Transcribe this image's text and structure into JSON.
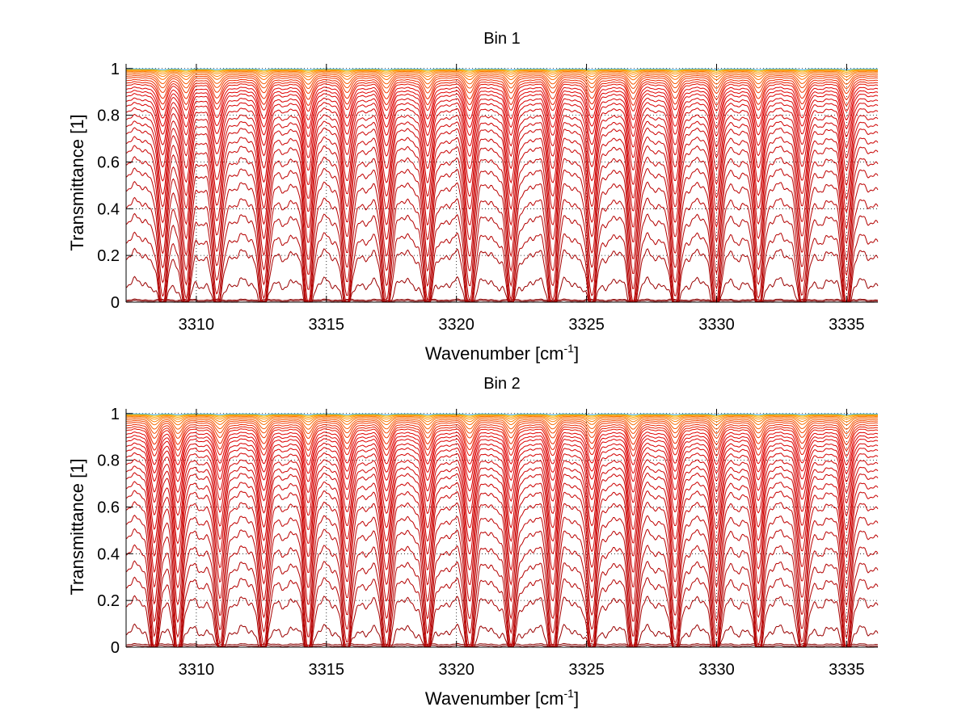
{
  "chart_data": [
    {
      "type": "line",
      "title": "Bin 1",
      "xlabel": "Wavenumber [cm",
      "xlabel_sup": "-1",
      "xlabel_end": "]",
      "ylabel": "Transmittance [1]",
      "xlim": [
        3307.3,
        3336.2
      ],
      "ylim": [
        0,
        1.02
      ],
      "grid": true,
      "xticks": [
        3310,
        3315,
        3320,
        3325,
        3330,
        3335
      ],
      "yticks": [
        0,
        0.2,
        0.4,
        0.6,
        0.8,
        1
      ],
      "xtick_labels": [
        "3310",
        "3315",
        "3320",
        "3325",
        "3330",
        "3335"
      ],
      "ytick_labels": [
        "0",
        "0.2",
        "0.4",
        "0.6",
        "0.8",
        "1"
      ],
      "absorption_lines": [
        3308.7,
        3309.6,
        3310.8,
        3312.6,
        3314.3,
        3315.8,
        3317.3,
        3318.9,
        3320.5,
        3322.1,
        3323.7,
        3325.2,
        3326.8,
        3328.4,
        3330.0,
        3331.6,
        3333.3,
        3335.0
      ],
      "series_baselines": [
        0.005,
        0.01,
        0.08,
        0.2,
        0.27,
        0.35,
        0.42,
        0.49,
        0.55,
        0.6,
        0.65,
        0.69,
        0.73,
        0.76,
        0.79,
        0.82,
        0.845,
        0.865,
        0.885,
        0.9,
        0.915,
        0.93,
        0.94,
        0.95,
        0.96,
        0.968,
        0.975,
        0.982,
        0.987,
        0.991,
        0.994,
        0.996,
        0.998
      ],
      "series_colors": [
        "#7f0000",
        "#8b0000",
        "#9a0000",
        "#a80000",
        "#b40000",
        "#b40000",
        "#bb0000",
        "#bb0000",
        "#c00000",
        "#c40000",
        "#c80000",
        "#cc0000",
        "#cc0000",
        "#d00000",
        "#d00000",
        "#d40000",
        "#d80000",
        "#d80000",
        "#dc0000",
        "#e00000",
        "#e00000",
        "#e41000",
        "#e81c00",
        "#ec2800",
        "#f03800",
        "#f44800",
        "#f65800",
        "#f86a00",
        "#fa7c00",
        "#fc8e00",
        "#fea000",
        "#ffc000",
        "#3cb0e0"
      ]
    },
    {
      "type": "line",
      "title": "Bin 2",
      "xlabel": "Wavenumber [cm",
      "xlabel_sup": "-1",
      "xlabel_end": "]",
      "ylabel": "Transmittance [1]",
      "xlim": [
        3307.3,
        3336.2
      ],
      "ylim": [
        0,
        1.02
      ],
      "grid": true,
      "xticks": [
        3310,
        3315,
        3320,
        3325,
        3330,
        3335
      ],
      "yticks": [
        0,
        0.2,
        0.4,
        0.6,
        0.8,
        1
      ],
      "xtick_labels": [
        "3310",
        "3315",
        "3320",
        "3325",
        "3330",
        "3335"
      ],
      "ytick_labels": [
        "0",
        "0.2",
        "0.4",
        "0.6",
        "0.8",
        "1"
      ],
      "absorption_lines": [
        3308.4,
        3309.3,
        3310.9,
        3312.6,
        3314.3,
        3315.8,
        3317.3,
        3318.9,
        3320.5,
        3322.1,
        3323.7,
        3325.2,
        3326.8,
        3328.4,
        3330.0,
        3331.6,
        3333.3,
        3335.0
      ],
      "series_baselines": [
        0.005,
        0.012,
        0.07,
        0.19,
        0.27,
        0.34,
        0.41,
        0.48,
        0.54,
        0.6,
        0.65,
        0.69,
        0.73,
        0.76,
        0.79,
        0.82,
        0.845,
        0.865,
        0.885,
        0.9,
        0.915,
        0.93,
        0.94,
        0.95,
        0.96,
        0.968,
        0.975,
        0.982,
        0.987,
        0.991,
        0.994,
        0.996,
        0.998
      ],
      "series_colors": [
        "#7f0000",
        "#8b0000",
        "#9a0000",
        "#a80000",
        "#b40000",
        "#b40000",
        "#bb0000",
        "#bb0000",
        "#c00000",
        "#c40000",
        "#c80000",
        "#cc0000",
        "#cc0000",
        "#d00000",
        "#d00000",
        "#d40000",
        "#d80000",
        "#d80000",
        "#dc0000",
        "#e00000",
        "#e00000",
        "#e41000",
        "#e81c00",
        "#ec2800",
        "#f03800",
        "#f44800",
        "#f65800",
        "#f86a00",
        "#fa7c00",
        "#fc8e00",
        "#fea000",
        "#ffc000",
        "#3cb0e0"
      ]
    }
  ]
}
